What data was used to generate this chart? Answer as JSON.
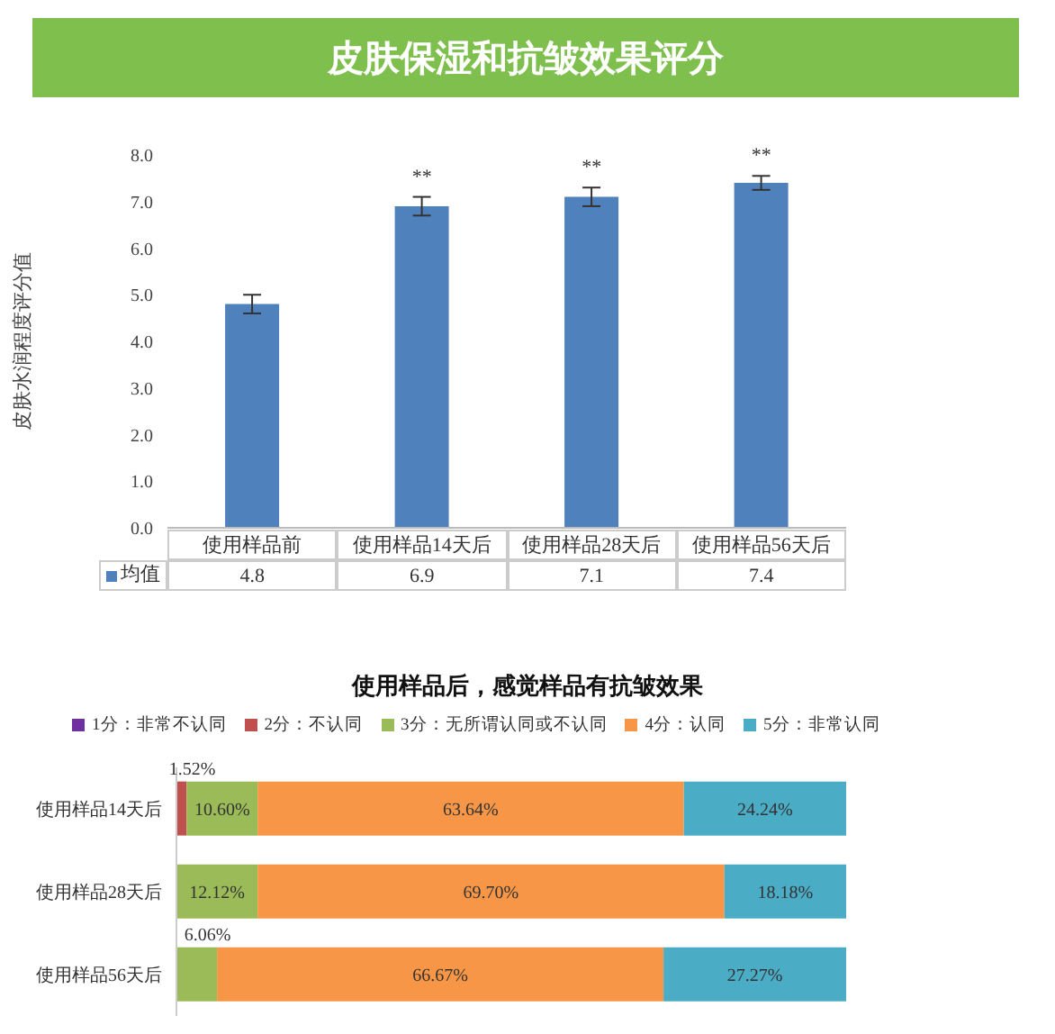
{
  "chart_data": [
    {
      "type": "bar",
      "title": "皮肤保湿和抗皱效果评分",
      "ylabel": "皮肤水润程度评分值",
      "categories": [
        "使用样品前",
        "使用样品14天后",
        "使用样品28天后",
        "使用样品56天后"
      ],
      "series": [
        {
          "name": "均值",
          "color": "#4f81bd",
          "values": [
            4.8,
            6.9,
            7.1,
            7.4
          ],
          "errors": [
            0.2,
            0.2,
            0.2,
            0.15
          ]
        }
      ],
      "ylim": [
        0,
        8
      ],
      "yticks": [
        {
          "value": 0,
          "label": "0.0"
        },
        {
          "value": 1,
          "label": "1.0"
        },
        {
          "value": 2,
          "label": "2.0"
        },
        {
          "value": 3,
          "label": "3.0"
        },
        {
          "value": 4,
          "label": "4.0"
        },
        {
          "value": 5,
          "label": "5.0"
        },
        {
          "value": 6,
          "label": "6.0"
        },
        {
          "value": 7,
          "label": "7.0"
        },
        {
          "value": 8,
          "label": "8.0"
        }
      ],
      "data_labels": true,
      "annotations": [
        "**",
        "**",
        "**"
      ]
    },
    {
      "type": "bar",
      "orientation": "horizontal",
      "stacked": true,
      "title": "使用样品后，感觉样品有抗皱效果",
      "categories": [
        "使用样品14天后",
        "使用样品28天后",
        "使用样品56天后"
      ],
      "legend": "top",
      "tick_labels": "y",
      "series": [
        {
          "name": "1分：非常不认同",
          "color": "#7030a0",
          "values": [
            0,
            0,
            0
          ],
          "value_labels": [
            null,
            null,
            null
          ]
        },
        {
          "name": "2分：不认同",
          "color": "#c0504d",
          "values": [
            1.52,
            0,
            0
          ],
          "value_labels": [
            "1.52%",
            null,
            null
          ]
        },
        {
          "name": "3分：无所谓认同或不认同",
          "color": "#9bbb59",
          "values": [
            10.6,
            12.12,
            6.06
          ],
          "value_labels": [
            "10.60%",
            "12.12%",
            "6.06%"
          ]
        },
        {
          "name": "4分：认同",
          "color": "#f79646",
          "values": [
            63.64,
            69.7,
            66.67
          ],
          "value_labels": [
            "63.64%",
            "69.70%",
            "66.67%"
          ]
        },
        {
          "name": "5分：非常认同",
          "color": "#4bacc6",
          "values": [
            24.24,
            18.18,
            27.27
          ],
          "value_labels": [
            "24.24%",
            "18.18%",
            "27.27%"
          ]
        }
      ]
    }
  ]
}
